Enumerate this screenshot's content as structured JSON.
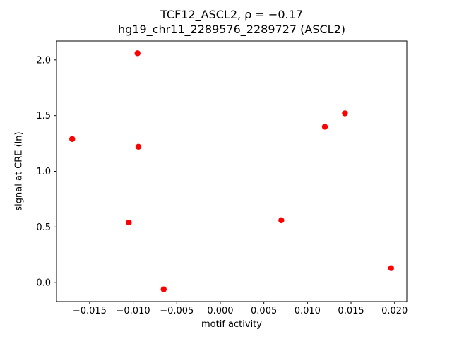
{
  "chart_data": {
    "type": "scatter",
    "title_line1": "TCF12_ASCL2, ρ = −0.17",
    "title_line2": "hg19_chr11_2289576_2289727 (ASCL2)",
    "xlabel": "motif activity",
    "ylabel": "signal at CRE (ln)",
    "marker_color": "#ff0000",
    "axis_color": "#000000",
    "grid": false,
    "legend": null,
    "xlim": [
      -0.0188,
      0.0214
    ],
    "ylim": [
      -0.17,
      2.17
    ],
    "x_ticks": [
      -0.015,
      -0.01,
      -0.005,
      0,
      0.005,
      0.01,
      0.015,
      0.02
    ],
    "x_tick_labels": [
      "−0.015",
      "−0.010",
      "−0.005",
      "0.000",
      "0.005",
      "0.010",
      "0.015",
      "0.020"
    ],
    "y_ticks": [
      0,
      0.5,
      1,
      1.5,
      2
    ],
    "y_tick_labels": [
      "0.0",
      "0.5",
      "1.0",
      "1.5",
      "2.0"
    ],
    "points": [
      {
        "x": -0.017,
        "y": 1.29
      },
      {
        "x": -0.0105,
        "y": 0.54
      },
      {
        "x": -0.0095,
        "y": 2.06
      },
      {
        "x": -0.0094,
        "y": 1.22
      },
      {
        "x": -0.0065,
        "y": -0.06
      },
      {
        "x": 0.007,
        "y": 0.56
      },
      {
        "x": 0.012,
        "y": 1.4
      },
      {
        "x": 0.0143,
        "y": 1.52
      },
      {
        "x": 0.0196,
        "y": 0.13
      }
    ]
  }
}
